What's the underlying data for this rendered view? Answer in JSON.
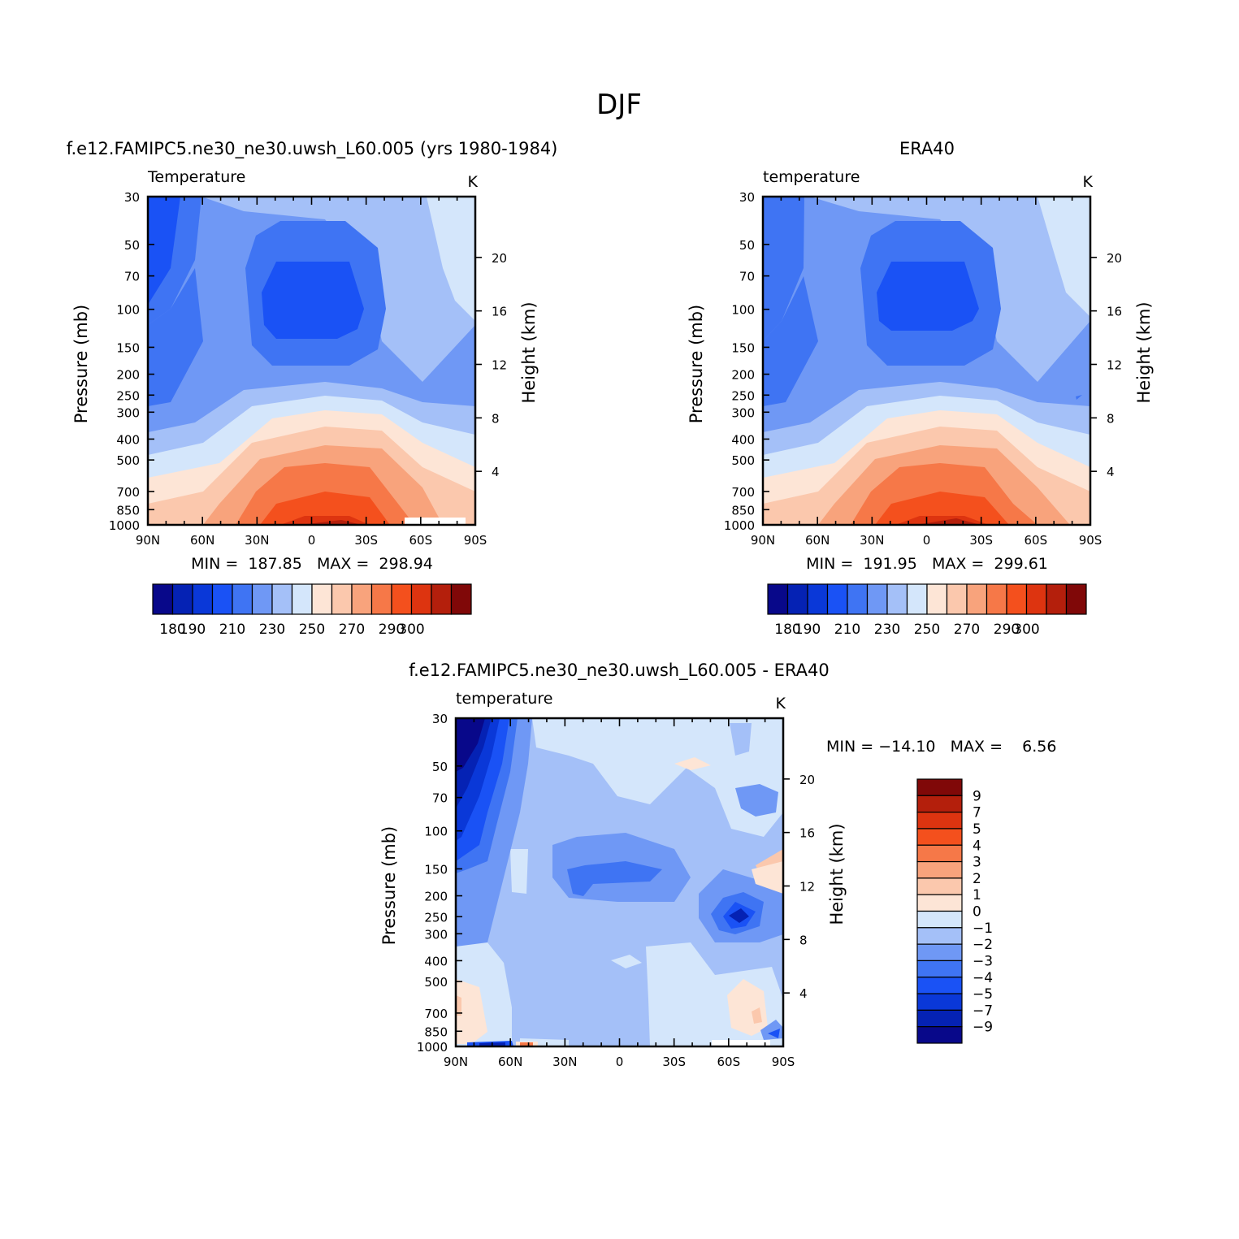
{
  "figure": {
    "title": "DJF"
  },
  "colormap": [
    "#08088a",
    "#0522b4",
    "#0a38d8",
    "#1a52f5",
    "#3f74f3",
    "#6f98f5",
    "#a4c0f8",
    "#d4e6fb",
    "#fde5d6",
    "#fbc8ad",
    "#f8a37c",
    "#f67848",
    "#f4501d",
    "#dd3410",
    "#b41f0c",
    "#800808"
  ],
  "chart_data": [
    {
      "type": "contour",
      "id": "model",
      "header": "f.e12.FAMIPC5.ne30_ne30.uwsh_L60.005 (yrs 1980-1984)",
      "left_label": "Temperature",
      "units": "K",
      "ylabel": "Pressure (mb)",
      "ylabel_right": "Height (km)",
      "x_ticks": [
        "90N",
        "60N",
        "30N",
        "0",
        "30S",
        "60S",
        "90S"
      ],
      "y_ticks": [
        30,
        50,
        70,
        100,
        150,
        200,
        250,
        300,
        400,
        500,
        700,
        850,
        1000
      ],
      "y_right_ticks": [
        20,
        16,
        12,
        8,
        4
      ],
      "xlim": [
        "90N",
        "90S"
      ],
      "ylim": [
        1000,
        30
      ],
      "y_scale": "log",
      "stats": "MIN =  187.85   MAX =  298.94",
      "levels": [
        180,
        190,
        200,
        210,
        220,
        230,
        240,
        250,
        260,
        270,
        280,
        290,
        300
      ],
      "colorbar_labels": [
        "180",
        "190",
        "210",
        "230",
        "250",
        "270",
        "290",
        "300"
      ],
      "colorbar_orientation": "horizontal"
    },
    {
      "type": "contour",
      "id": "obs",
      "header": "ERA40",
      "left_label": "temperature",
      "units": "K",
      "ylabel": "Pressure (mb)",
      "ylabel_right": "Height (km)",
      "x_ticks": [
        "90N",
        "60N",
        "30N",
        "0",
        "30S",
        "60S",
        "90S"
      ],
      "y_ticks": [
        30,
        50,
        70,
        100,
        150,
        200,
        250,
        300,
        400,
        500,
        700,
        850,
        1000
      ],
      "y_right_ticks": [
        20,
        16,
        12,
        8,
        4
      ],
      "xlim": [
        "90N",
        "90S"
      ],
      "ylim": [
        1000,
        30
      ],
      "y_scale": "log",
      "stats": "MIN =  191.95   MAX =  299.61",
      "levels": [
        180,
        190,
        200,
        210,
        220,
        230,
        240,
        250,
        260,
        270,
        280,
        290,
        300
      ],
      "colorbar_labels": [
        "180",
        "190",
        "210",
        "230",
        "250",
        "270",
        "290",
        "300"
      ],
      "colorbar_orientation": "horizontal"
    },
    {
      "type": "contour",
      "id": "diff",
      "header": "f.e12.FAMIPC5.ne30_ne30.uwsh_L60.005 - ERA40",
      "left_label": "temperature",
      "units": "K",
      "ylabel": "Pressure (mb)",
      "ylabel_right": "Height (km)",
      "x_ticks": [
        "90N",
        "60N",
        "30N",
        "0",
        "30S",
        "60S",
        "90S"
      ],
      "y_ticks": [
        30,
        50,
        70,
        100,
        150,
        200,
        250,
        300,
        400,
        500,
        700,
        850,
        1000
      ],
      "y_right_ticks": [
        20,
        16,
        12,
        8,
        4
      ],
      "xlim": [
        "90N",
        "90S"
      ],
      "ylim": [
        1000,
        30
      ],
      "y_scale": "log",
      "stats": "MIN = −14.10   MAX =    6.56",
      "levels": [
        -9,
        -7,
        -5,
        -4,
        -3,
        -2,
        -1,
        0,
        1,
        2,
        3,
        4,
        5,
        7,
        9
      ],
      "colorbar_labels": [
        "9",
        "7",
        "5",
        "4",
        "3",
        "2",
        "1",
        "0",
        "−1",
        "−2",
        "−3",
        "−4",
        "−5",
        "−7",
        "−9"
      ],
      "colorbar_orientation": "vertical"
    }
  ]
}
